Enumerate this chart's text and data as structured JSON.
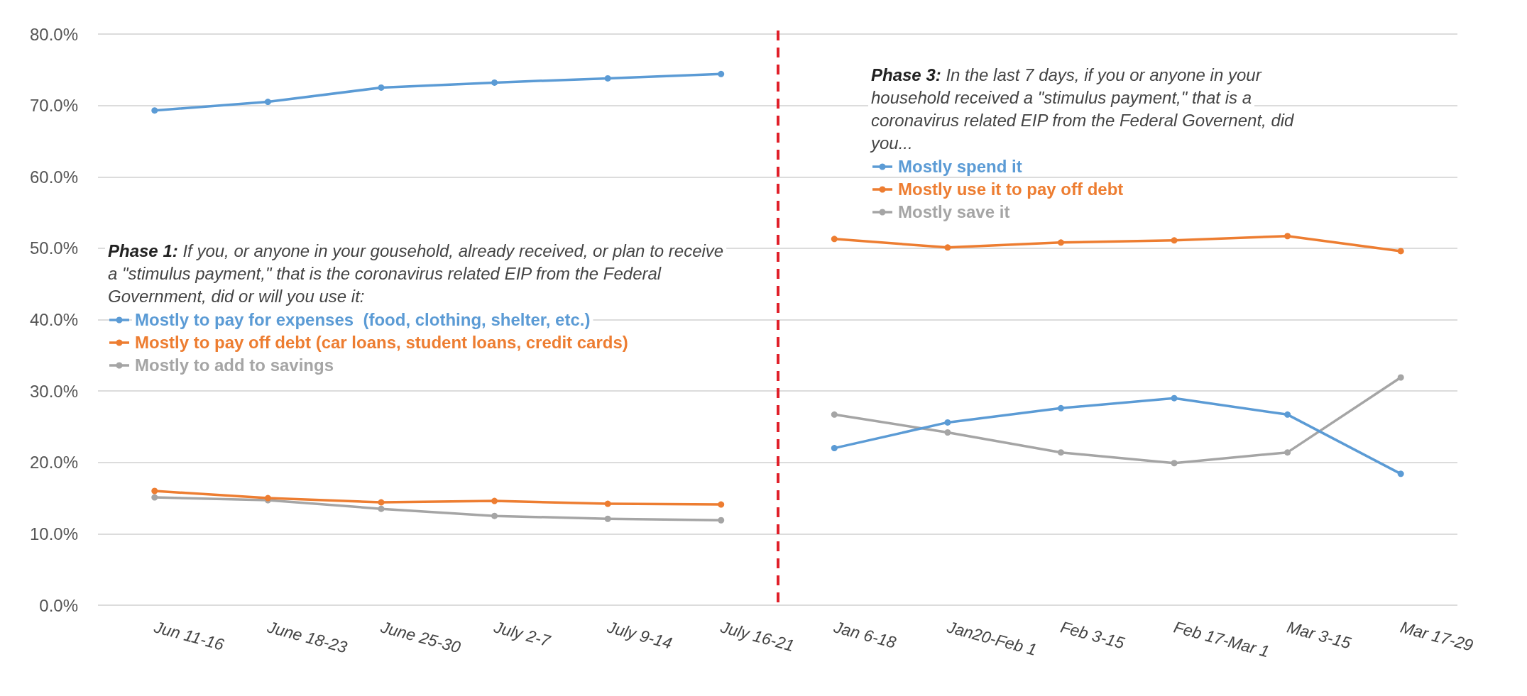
{
  "chart_data": {
    "type": "line",
    "categories": [
      "Jun 11-16",
      "June 18-23",
      "June 25-30",
      "July 2-7",
      "July 9-14",
      "July 16-21",
      "Jan 6-18",
      "Jan20-Feb 1",
      "Feb 3-15",
      "Feb 17-Mar 1",
      "Mar 3-15",
      "Mar 17-29"
    ],
    "series": [
      {
        "name": "Mostly to pay for expenses  (food, clothing, shelter, etc.)",
        "color": "#5b9bd5",
        "values": [
          69.3,
          70.5,
          72.5,
          73.2,
          73.8,
          74.4,
          null,
          null,
          null,
          null,
          null,
          null
        ]
      },
      {
        "name": "Mostly to pay off debt (car loans, student loans, credit cards)",
        "color": "#ed7d31",
        "values": [
          16.0,
          15.0,
          14.4,
          14.6,
          14.2,
          14.1,
          null,
          null,
          null,
          null,
          null,
          null
        ]
      },
      {
        "name": "Mostly to add to savings",
        "color": "#a5a5a5",
        "values": [
          15.1,
          14.7,
          13.5,
          12.5,
          12.1,
          11.9,
          null,
          null,
          null,
          null,
          null,
          null
        ]
      },
      {
        "name": "Mostly spend it",
        "color": "#5b9bd5",
        "values": [
          null,
          null,
          null,
          null,
          null,
          null,
          22.0,
          25.6,
          27.6,
          29.0,
          26.7,
          18.4
        ]
      },
      {
        "name": "Mostly use it to pay off debt",
        "color": "#ed7d31",
        "values": [
          null,
          null,
          null,
          null,
          null,
          null,
          51.3,
          50.1,
          50.8,
          51.1,
          51.7,
          49.6
        ]
      },
      {
        "name": "Mostly save it",
        "color": "#a5a5a5",
        "values": [
          null,
          null,
          null,
          null,
          null,
          null,
          26.7,
          24.2,
          21.4,
          19.9,
          21.4,
          31.9
        ]
      }
    ],
    "ylim": [
      0,
      80
    ],
    "yticks": [
      {
        "value": 0,
        "label": "0.0%"
      },
      {
        "value": 10,
        "label": "10.0%"
      },
      {
        "value": 20,
        "label": "20.0%"
      },
      {
        "value": 30,
        "label": "30.0%"
      },
      {
        "value": 40,
        "label": "40.0%"
      },
      {
        "value": 50,
        "label": "50.0%"
      },
      {
        "value": 60,
        "label": "60.0%"
      },
      {
        "value": 70,
        "label": "70.0%"
      },
      {
        "value": 80,
        "label": "80.0%"
      }
    ],
    "grid": "y",
    "marker": "circle",
    "line_style": "solid",
    "legend": "top left",
    "annotations": [
      "Phase 1: If you, or anyone in your gousehold, already received, or plan to receive a \"stimulus payment,\" that is the coronavirus related EIP from the Federal Government, did or will you use it:",
      "Phase 3: In the last 7 days, if you or anyone in your household received a \"stimulus payment,\" that is a coronavirus related EIP from the Federal Governent, did you..."
    ]
  }
}
